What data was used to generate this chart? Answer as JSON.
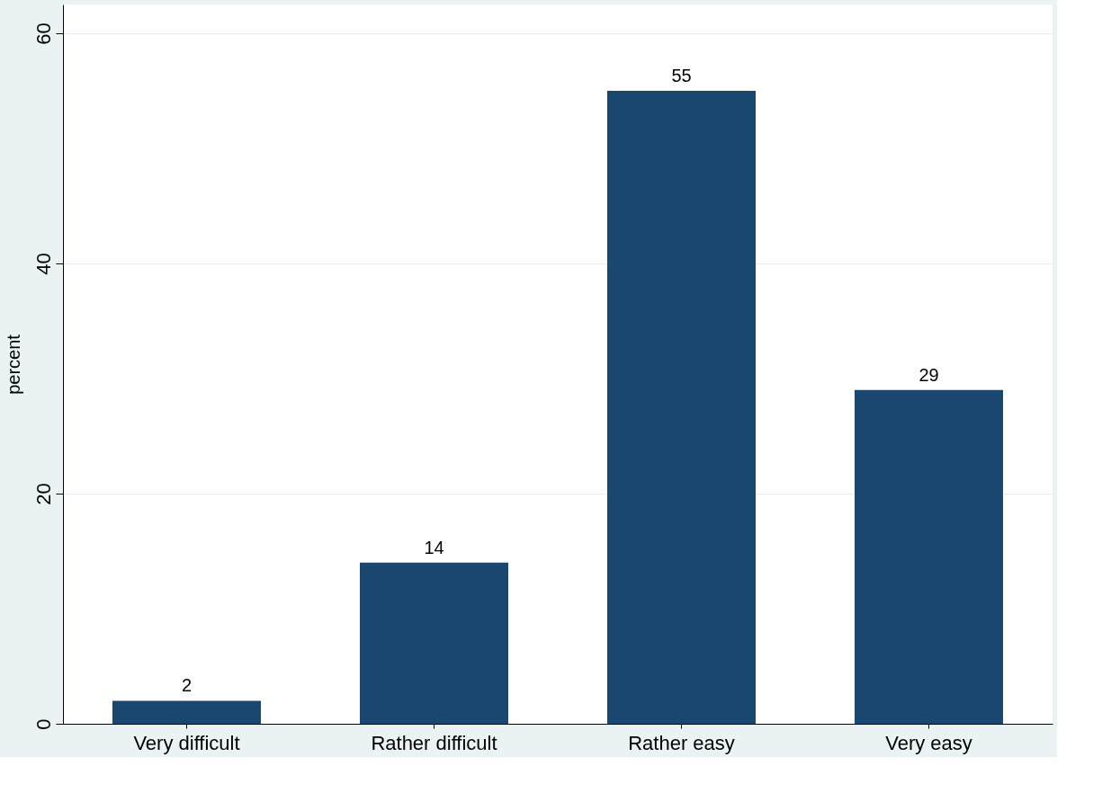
{
  "chart_data": {
    "type": "bar",
    "ylabel": "percent",
    "categories": [
      "Very difficult",
      "Rather difficult",
      "Rather easy",
      "Very easy"
    ],
    "values": [
      2,
      14,
      55,
      29
    ],
    "color": "#1a476f",
    "ylim": [
      0,
      62.5
    ],
    "yticks": [
      0,
      20,
      40,
      60
    ],
    "grid": "y",
    "data_labels": true
  }
}
